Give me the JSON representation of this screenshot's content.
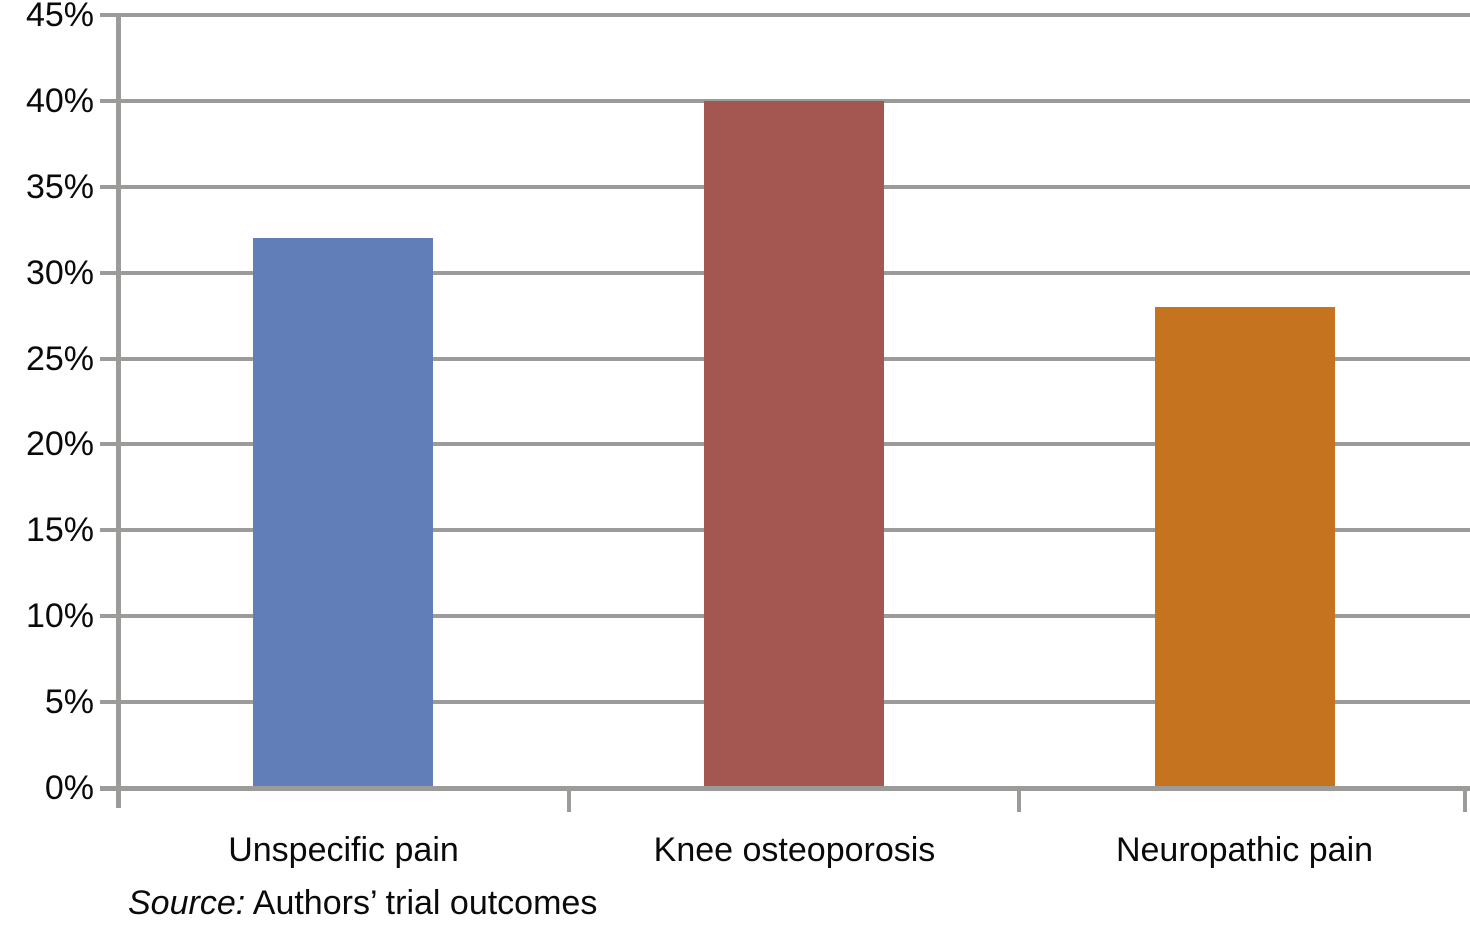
{
  "chart_data": {
    "type": "bar",
    "categories": [
      "Unspecific pain",
      "Knee osteoporosis",
      "Neuropathic pain"
    ],
    "values": [
      32,
      40,
      28
    ],
    "value_unit": "%",
    "title": "",
    "xlabel": "",
    "ylabel": "",
    "ylim": [
      0,
      45
    ],
    "y_tick_step": 5,
    "y_tick_labels": [
      "0%",
      "5%",
      "10%",
      "15%",
      "20%",
      "25%",
      "30%",
      "35%",
      "40%",
      "45%"
    ],
    "grid_on": true,
    "legend": "none",
    "bar_colors": [
      "#627EB8",
      "#A45650",
      "#C67320"
    ],
    "grid_color": "#9B9B99",
    "axis_color": "#9B9B99",
    "background_color": "#FFFFFF",
    "source_prefix": "Source:",
    "source_text": "Authors’ trial outcomes"
  }
}
